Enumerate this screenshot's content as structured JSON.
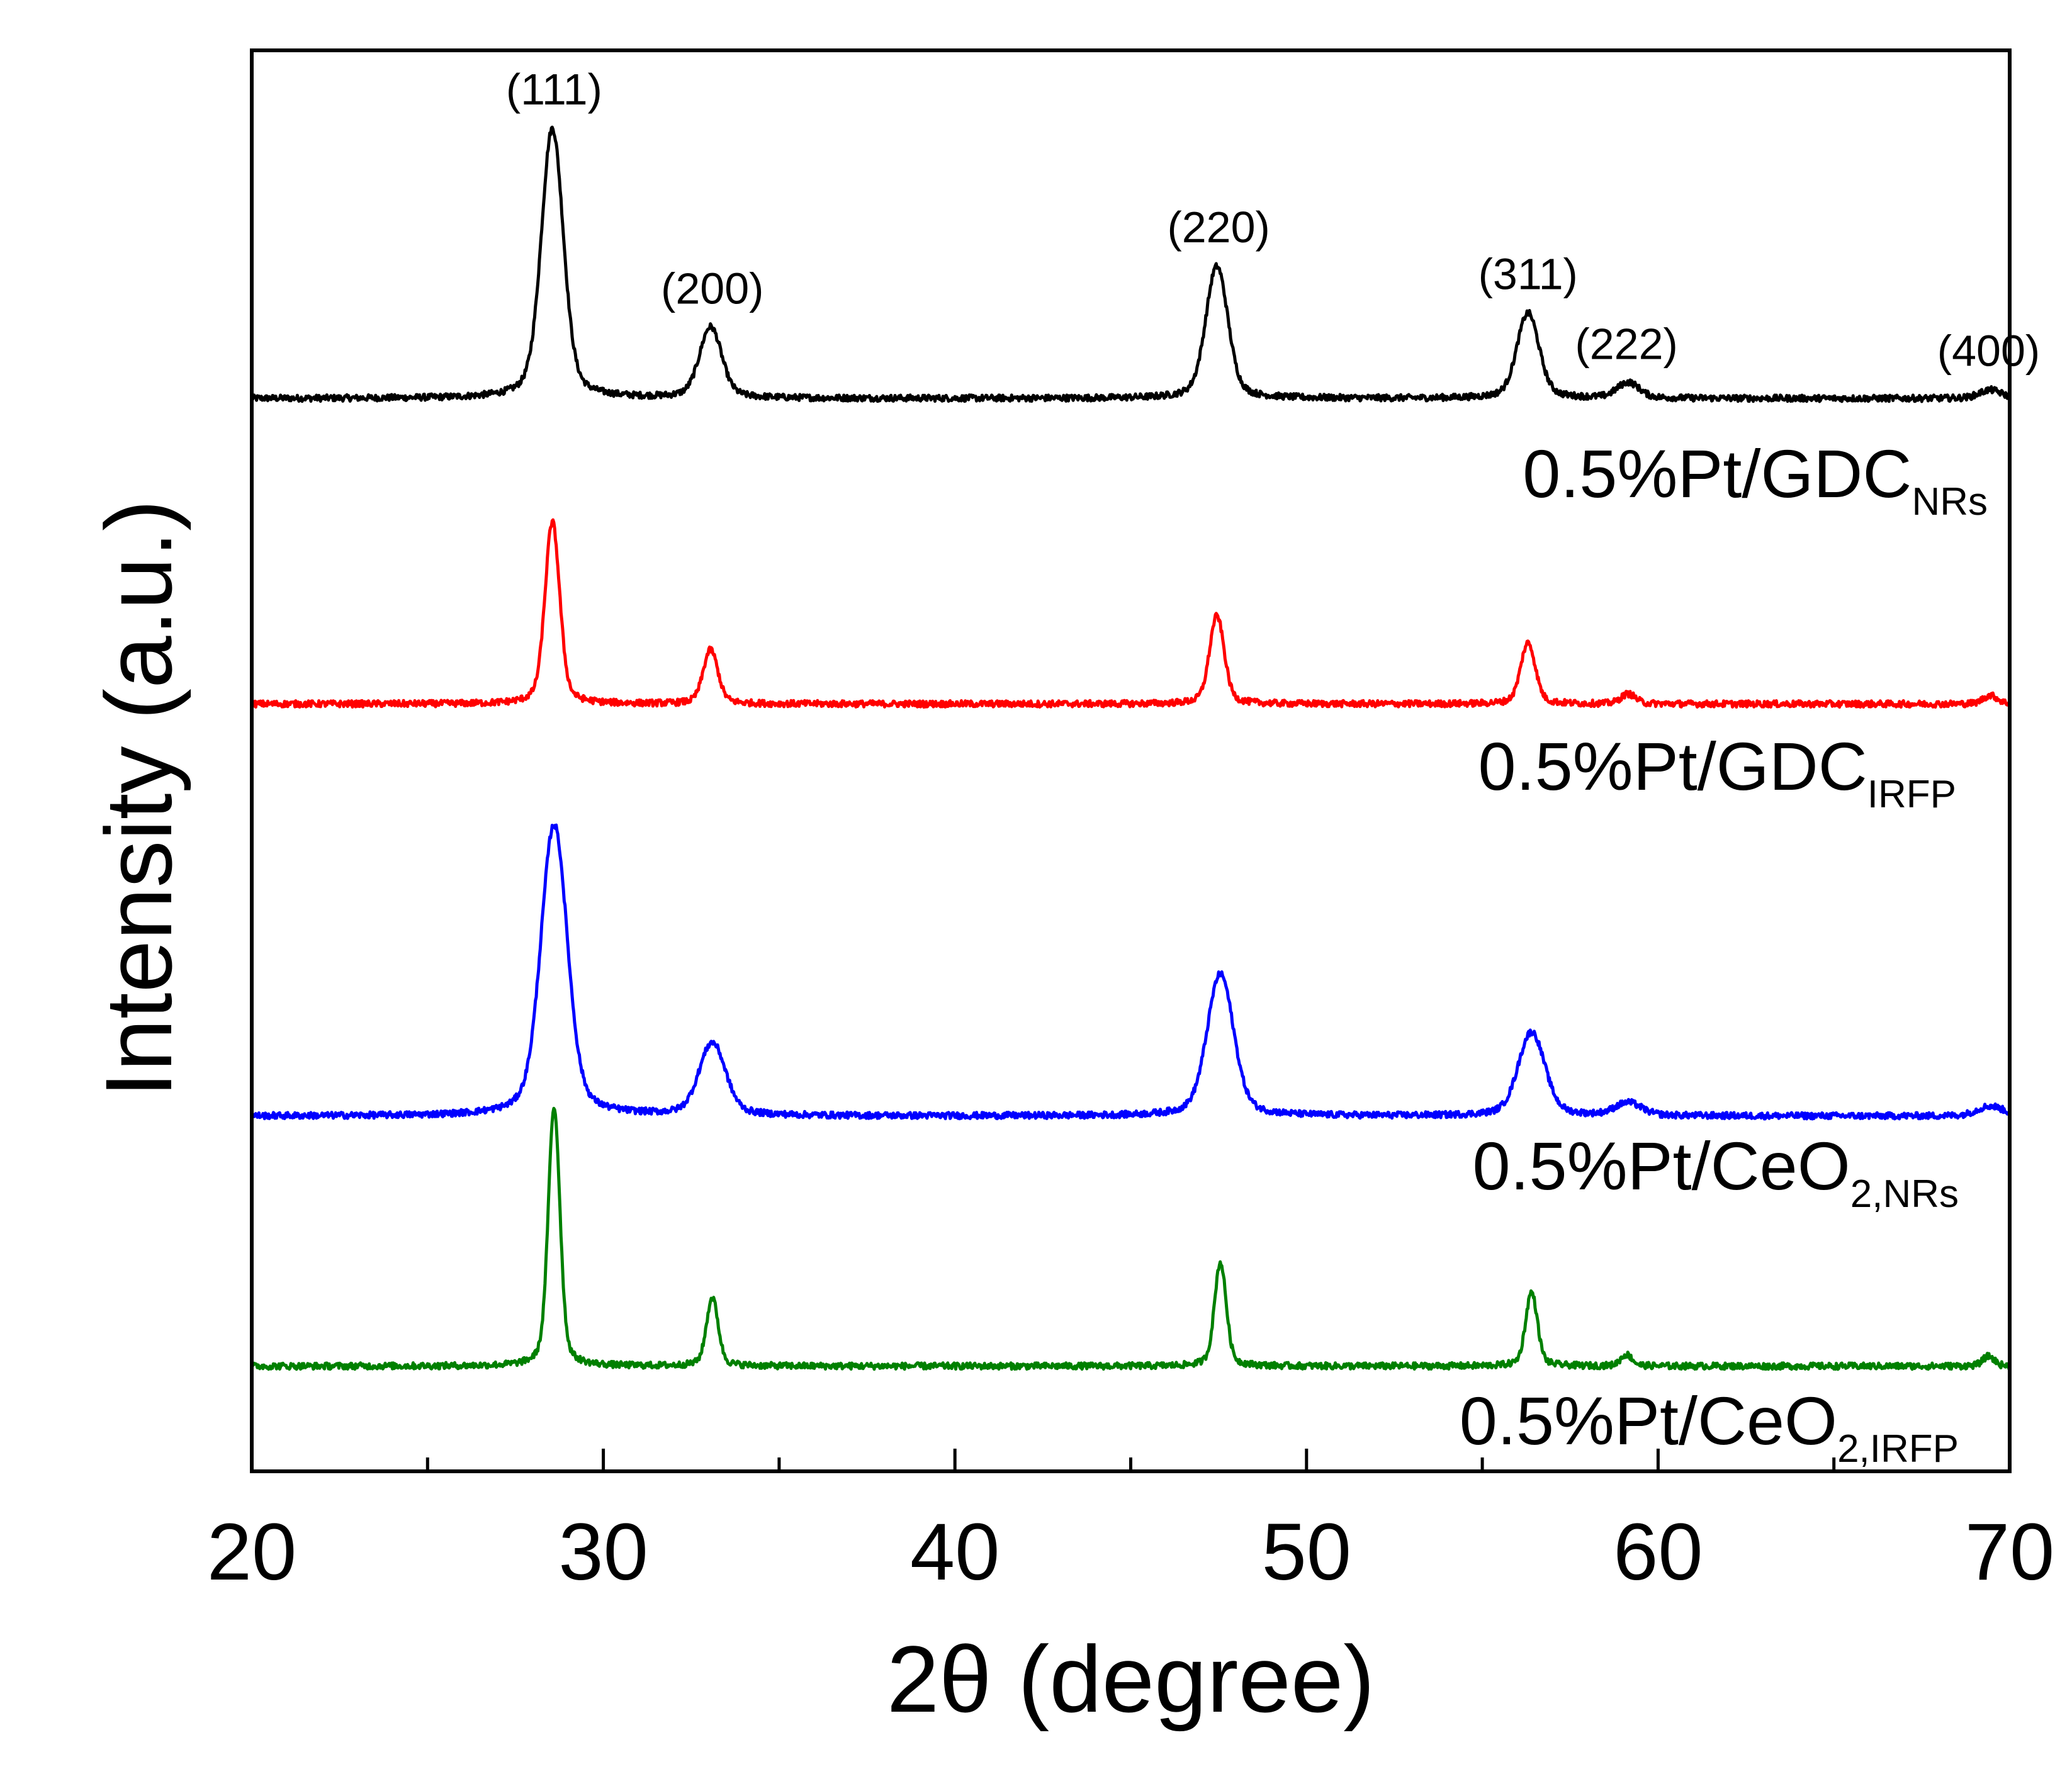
{
  "chart_data": {
    "type": "line",
    "title": "",
    "xlabel": "2θ (degree)",
    "ylabel": "Intensity (a.u.)",
    "xlim": [
      20,
      70
    ],
    "xticks": [
      20,
      30,
      40,
      50,
      60,
      70
    ],
    "grid": false,
    "y_units": "stacked arbitrary units (0 = bottom of plot, 100 = top)",
    "peak_labels": [
      {
        "label": "(111)",
        "x": 28.6
      },
      {
        "label": "(200)",
        "x": 33.1
      },
      {
        "label": "(220)",
        "x": 47.5
      },
      {
        "label": "(311)",
        "x": 56.3
      },
      {
        "label": "(222)",
        "x": 59.1
      },
      {
        "label": "(400)",
        "x": 69.4
      }
    ],
    "series": [
      {
        "name": "0.5%Pt/GDC",
        "name_main": "0.5%Pt/GDC",
        "name_sub": "NRs",
        "color": "#000000",
        "baseline": 75.5,
        "width": 0.3,
        "peaks": [
          {
            "x": 28.55,
            "height": 19.0
          },
          {
            "x": 33.05,
            "height": 5.0
          },
          {
            "x": 47.45,
            "height": 9.3
          },
          {
            "x": 56.3,
            "height": 6.0
          },
          {
            "x": 59.15,
            "height": 1.1
          },
          {
            "x": 69.45,
            "height": 0.6
          }
        ]
      },
      {
        "name": "0.5%Pt/GDC",
        "name_main": "0.5%Pt/GDC",
        "name_sub": "IRFP",
        "color": "#ff0000",
        "baseline": 54.0,
        "width": 0.2,
        "peaks": [
          {
            "x": 28.55,
            "height": 12.8
          },
          {
            "x": 33.05,
            "height": 3.8
          },
          {
            "x": 47.45,
            "height": 6.2
          },
          {
            "x": 56.3,
            "height": 4.3
          },
          {
            "x": 59.15,
            "height": 0.7
          },
          {
            "x": 69.45,
            "height": 0.6
          }
        ]
      },
      {
        "name": "0.5%Pt/CeO2,NRs",
        "name_main": "0.5%Pt/CeO",
        "name_sub": "2,NRs",
        "color": "#0000ff",
        "baseline": 25.0,
        "width": 0.36,
        "peaks": [
          {
            "x": 28.6,
            "height": 20.5
          },
          {
            "x": 33.1,
            "height": 5.1
          },
          {
            "x": 47.55,
            "height": 10.0
          },
          {
            "x": 56.4,
            "height": 5.9
          },
          {
            "x": 59.15,
            "height": 0.9
          },
          {
            "x": 69.45,
            "height": 0.7
          }
        ]
      },
      {
        "name": "0.5%Pt/CeO2,IRFP",
        "name_main": "0.5%Pt/CeO",
        "name_sub": "2,IRFP",
        "color": "#008000",
        "baseline": 7.4,
        "width": 0.16,
        "peaks": [
          {
            "x": 28.6,
            "height": 18.2
          },
          {
            "x": 33.1,
            "height": 4.8
          },
          {
            "x": 47.55,
            "height": 7.3
          },
          {
            "x": 56.4,
            "height": 5.2
          },
          {
            "x": 59.1,
            "height": 0.8
          },
          {
            "x": 69.4,
            "height": 0.7
          }
        ]
      }
    ]
  }
}
